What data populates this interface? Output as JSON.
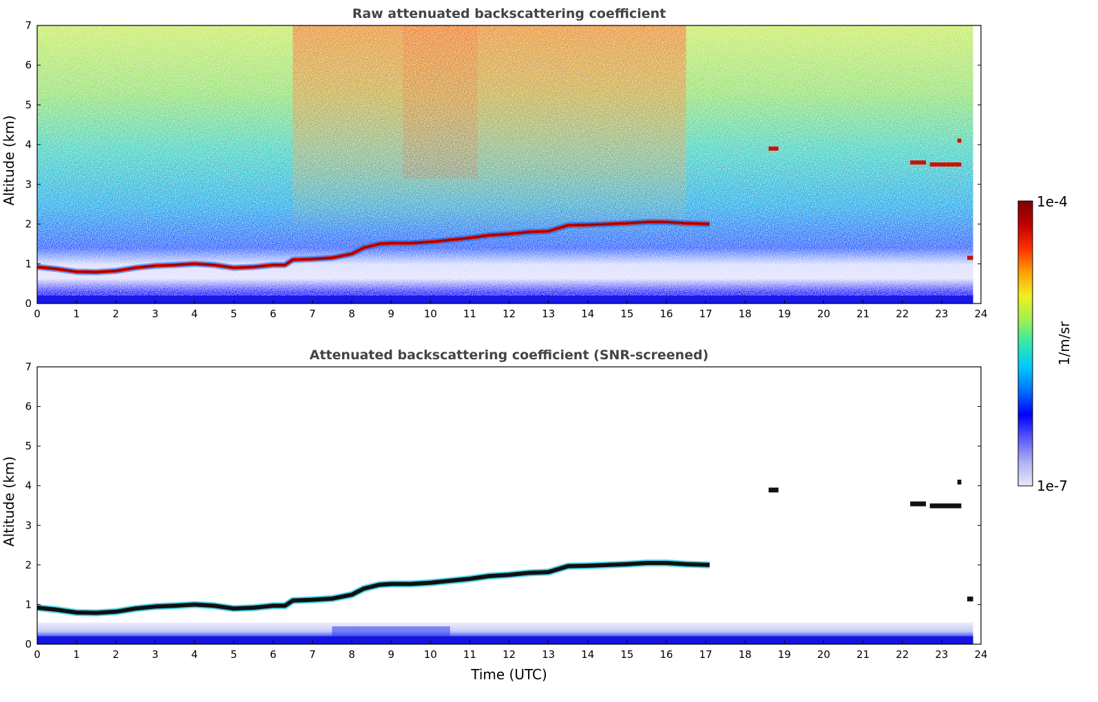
{
  "chart_data": [
    {
      "type": "heatmap",
      "title": "Raw attenuated backscattering coefficient",
      "xlabel": "",
      "ylabel": "Altitude (km)",
      "xlim": [
        0,
        24
      ],
      "ylim": [
        0,
        7
      ],
      "xticks": [
        "0",
        "1",
        "2",
        "3",
        "4",
        "5",
        "6",
        "7",
        "8",
        "9",
        "10",
        "11",
        "12",
        "13",
        "14",
        "15",
        "16",
        "17",
        "18",
        "19",
        "20",
        "21",
        "22",
        "23",
        "24"
      ],
      "yticks": [
        "0",
        "1",
        "2",
        "3",
        "4",
        "5",
        "6",
        "7"
      ],
      "colormap": "jet",
      "background": "noisy (signal + solar noise)",
      "cloud_layer": {
        "x": [
          0,
          0.5,
          1,
          1.5,
          2,
          2.5,
          3,
          3.5,
          4,
          4.5,
          5,
          5.5,
          6,
          6.3,
          6.5,
          7,
          7.5,
          8,
          8.3,
          8.7,
          9,
          9.5,
          10,
          10.5,
          11,
          11.5,
          12,
          12.5,
          13,
          13.5,
          14,
          14.5,
          15,
          15.5,
          16,
          16.5,
          17.1
        ],
        "y": [
          0.92,
          0.87,
          0.8,
          0.79,
          0.82,
          0.9,
          0.95,
          0.97,
          1.0,
          0.97,
          0.9,
          0.92,
          0.97,
          0.97,
          1.1,
          1.12,
          1.15,
          1.25,
          1.4,
          1.5,
          1.52,
          1.52,
          1.55,
          1.6,
          1.65,
          1.72,
          1.75,
          1.8,
          1.82,
          1.97,
          1.98,
          2.0,
          2.02,
          2.05,
          2.05,
          2.02,
          2.0
        ]
      },
      "high_clouds": [
        {
          "x": [
            18.6,
            18.85
          ],
          "y": 3.9
        },
        {
          "x": [
            22.2,
            22.6
          ],
          "y": 3.55
        },
        {
          "x": [
            22.7,
            23.5
          ],
          "y": 3.5
        },
        {
          "x": [
            23.4,
            23.5
          ],
          "y": 4.1
        },
        {
          "x": [
            23.65,
            23.8
          ],
          "y": 1.15
        }
      ],
      "boundary_layer_top_km": 0.5
    },
    {
      "type": "heatmap",
      "title": "Attenuated backscattering coefficient (SNR-screened)",
      "xlabel": "Time (UTC)",
      "ylabel": "Altitude (km)",
      "xlim": [
        0,
        24
      ],
      "ylim": [
        0,
        7
      ],
      "xticks": [
        "0",
        "1",
        "2",
        "3",
        "4",
        "5",
        "6",
        "7",
        "8",
        "9",
        "10",
        "11",
        "12",
        "13",
        "14",
        "15",
        "16",
        "17",
        "18",
        "19",
        "20",
        "21",
        "22",
        "23",
        "24"
      ],
      "yticks": [
        "0",
        "1",
        "2",
        "3",
        "4",
        "5",
        "6",
        "7"
      ],
      "colormap": "jet",
      "background": "white (screened)"
    }
  ],
  "colorbar": {
    "label": "1/m/sr",
    "max_label": "1e-4",
    "min_label": "1e-7",
    "stops": [
      "#e8e8fb",
      "#b0b0f3",
      "#5a5afa",
      "#0000ff",
      "#0070ff",
      "#00c8ff",
      "#30e8b0",
      "#a0f050",
      "#f0f020",
      "#ffa000",
      "#ff3000",
      "#c00000",
      "#800000"
    ]
  }
}
